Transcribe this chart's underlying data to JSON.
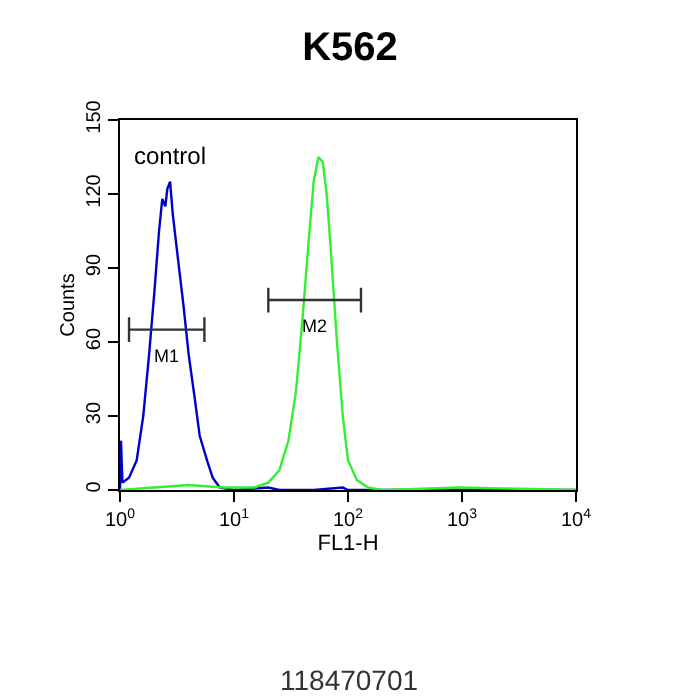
{
  "chart_data": {
    "type": "line",
    "title": "K562",
    "xlabel": "FL1-H",
    "ylabel": "Counts",
    "log": "x",
    "xlim": [
      1,
      10000
    ],
    "ylim": [
      0,
      150
    ],
    "xticks": [
      {
        "value": 1,
        "label": "10$^{0}$"
      },
      {
        "value": 10,
        "label": "10$^{1}$"
      },
      {
        "value": 100,
        "label": "10$^{2}$"
      },
      {
        "value": 1000,
        "label": "10$^{3}$"
      },
      {
        "value": 10000,
        "label": "10$^{4}$"
      }
    ],
    "yticks": [
      0,
      30,
      60,
      90,
      120,
      150
    ],
    "grid": false,
    "legend": false,
    "marker": "none",
    "line_style": "solid",
    "series": [
      {
        "color": "#0000cc",
        "x": [
          1.0,
          1.02,
          1.05,
          1.2,
          1.4,
          1.6,
          1.8,
          2.0,
          2.2,
          2.35,
          2.5,
          2.6,
          2.75,
          2.9,
          3.2,
          3.6,
          4.0,
          4.5,
          5.0,
          5.8,
          6.5,
          7.5,
          10,
          20,
          25,
          50,
          90,
          100,
          1000,
          10000
        ],
        "values": [
          0,
          20,
          3,
          5,
          12,
          30,
          55,
          80,
          105,
          118,
          115,
          122,
          125,
          112,
          95,
          75,
          55,
          38,
          22,
          12,
          5,
          1,
          0,
          1,
          0,
          0,
          1,
          0,
          0,
          0
        ]
      },
      {
        "color": "#33ee33",
        "x": [
          1,
          2,
          4,
          8,
          15,
          20,
          25,
          30,
          35,
          40,
          45,
          50,
          55,
          60,
          65,
          70,
          80,
          90,
          100,
          120,
          150,
          200,
          1000,
          10000
        ],
        "values": [
          0,
          1,
          2,
          1,
          1,
          3,
          8,
          20,
          40,
          70,
          100,
          125,
          135,
          133,
          120,
          100,
          60,
          30,
          12,
          4,
          1,
          0,
          1,
          0
        ]
      },
      {
        "name": "M1",
        "color": "#333333",
        "x": [
          1.2,
          1.2,
          1.2,
          5.5,
          5.5,
          5.5
        ],
        "values": [
          60,
          70,
          65,
          65,
          60,
          70
        ]
      },
      {
        "name": "M2",
        "color": "#333333",
        "x": [
          20,
          20,
          20,
          130,
          130,
          130
        ],
        "values": [
          72,
          82,
          77,
          77,
          72,
          82
        ]
      }
    ],
    "annotations": [
      "control",
      "118470701"
    ]
  }
}
